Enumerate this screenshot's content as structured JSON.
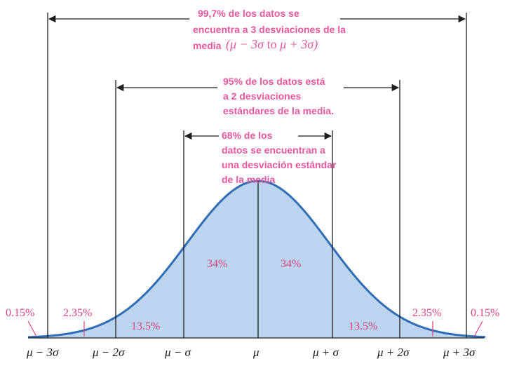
{
  "colors": {
    "curve_fill": "#bcd5ef",
    "curve_stroke": "#2f6db5",
    "annotation_text": "#e9579e",
    "lines": "#1f1f1f"
  },
  "ranges": {
    "three_sigma": {
      "lines": [
        "99,7%  de los datos se",
        "encuentra a 3 desviaciones  de la",
        "media"
      ],
      "formula": [
        "(μ − 3σ",
        " to ",
        "μ + 3σ)"
      ]
    },
    "two_sigma": {
      "lines": [
        "95% de los datos está",
        "a 2 desviaciones",
        "estándares de la media."
      ]
    },
    "one_sigma": {
      "lines": [
        "68% de los",
        "datos se encuentran a",
        "una desviación estándar",
        "de la media"
      ]
    }
  },
  "regions": {
    "center_left": "34%",
    "center_right": "34%",
    "mid_left": "13.5%",
    "mid_right": "13.5%",
    "outer_left": "2.35%",
    "outer_right": "2.35%",
    "tail_left": "0.15%",
    "tail_right": "0.15%"
  },
  "axis_labels": [
    "μ − 3σ",
    "μ − 2σ",
    "μ − σ",
    "μ",
    "μ + σ",
    "μ + 2σ",
    "μ + 3σ"
  ]
}
